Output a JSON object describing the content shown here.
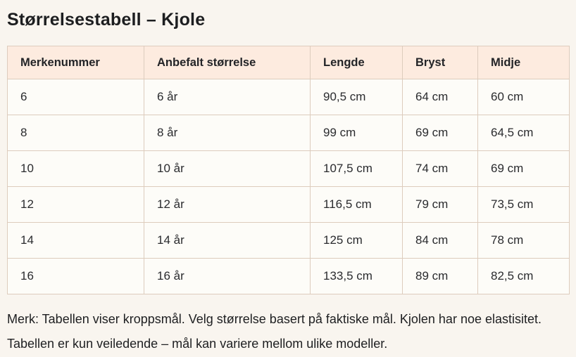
{
  "page": {
    "title": "Størrelsestabell – Kjole",
    "note": "Merk: Tabellen viser kroppsmål. Velg størrelse basert på faktiske mål. Kjolen har noe elastisitet. Tabellen er kun veiledende – mål kan variere mellom ulike modeller."
  },
  "table": {
    "headers": [
      "Merkenummer",
      "Anbefalt størrelse",
      "Lengde",
      "Bryst",
      "Midje"
    ],
    "rows": [
      [
        "6",
        "6 år",
        "90,5 cm",
        "64 cm",
        "60 cm"
      ],
      [
        "8",
        "8 år",
        "99 cm",
        "69 cm",
        "64,5 cm"
      ],
      [
        "10",
        "10 år",
        "107,5 cm",
        "74 cm",
        "69 cm"
      ],
      [
        "12",
        "12 år",
        "116,5 cm",
        "79 cm",
        "73,5 cm"
      ],
      [
        "14",
        "14 år",
        "125 cm",
        "84 cm",
        "78 cm"
      ],
      [
        "16",
        "16 år",
        "133,5 cm",
        "89 cm",
        "82,5 cm"
      ]
    ]
  },
  "colors": {
    "page_background": "#f9f5ef",
    "header_background": "#fdebdf",
    "cell_background": "#fdfcf8",
    "border": "#ddccbd",
    "text": "#222327"
  }
}
